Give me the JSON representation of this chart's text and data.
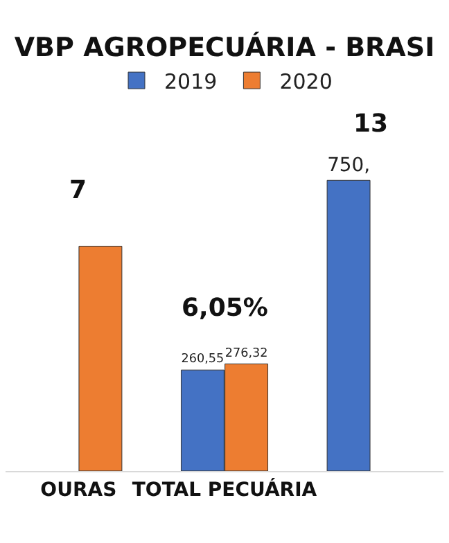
{
  "chart_data": {
    "type": "bar",
    "title": "VBP AGROPECUÁRIA - BRASI",
    "categories": [
      "OURAS",
      "TOTAL PECUÁRIA",
      null
    ],
    "series": [
      {
        "name": "2019",
        "color": "#4472c4",
        "values": [
          null,
          260.55,
          750
        ],
        "value_labels": [
          null,
          "260,55",
          "750,"
        ]
      },
      {
        "name": "2020",
        "color": "#ed7d31",
        "values": [
          580,
          276.32,
          null
        ],
        "value_labels": [
          null,
          "276,32",
          null
        ]
      }
    ],
    "annotations": [
      "7",
      "6,05%",
      "13"
    ],
    "legend": "top",
    "grid": false
  }
}
